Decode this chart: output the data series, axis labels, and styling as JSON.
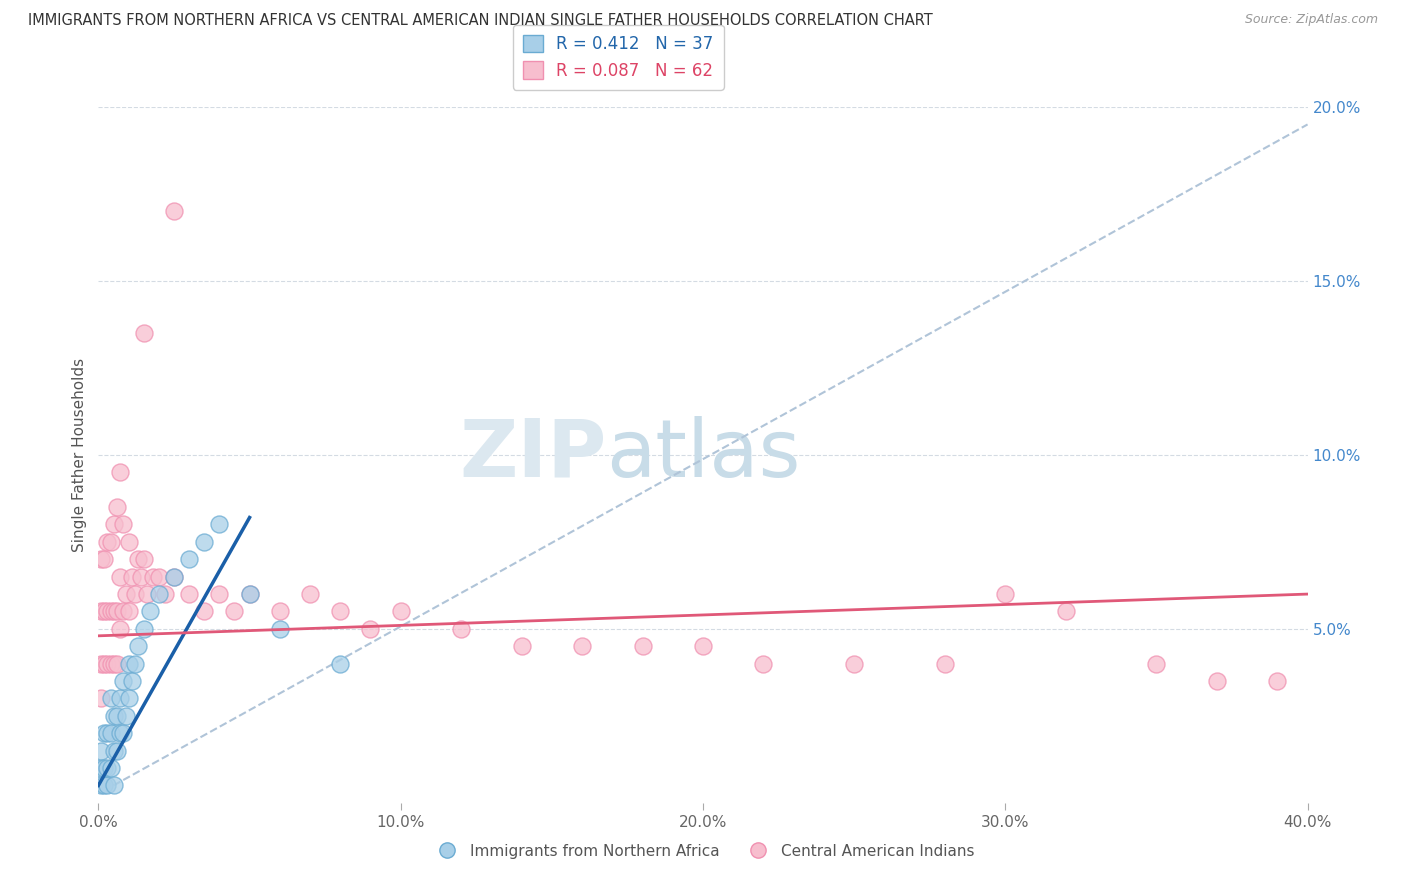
{
  "title": "IMMIGRANTS FROM NORTHERN AFRICA VS CENTRAL AMERICAN INDIAN SINGLE FATHER HOUSEHOLDS CORRELATION CHART",
  "source": "Source: ZipAtlas.com",
  "ylabel": "Single Father Households",
  "xlim": [
    0.0,
    0.4
  ],
  "ylim": [
    0.0,
    0.2
  ],
  "xticks": [
    0.0,
    0.1,
    0.2,
    0.3,
    0.4
  ],
  "xtick_labels": [
    "0.0%",
    "10.0%",
    "20.0%",
    "30.0%",
    "40.0%"
  ],
  "yticks_right": [
    0.05,
    0.1,
    0.15,
    0.2
  ],
  "ytick_labels_right": [
    "5.0%",
    "10.0%",
    "15.0%",
    "20.0%"
  ],
  "blue_label": "Immigrants from Northern Africa",
  "pink_label": "Central American Indians",
  "blue_R": 0.412,
  "blue_N": 37,
  "pink_R": 0.087,
  "pink_N": 62,
  "blue_color": "#a8cfe8",
  "pink_color": "#f7bece",
  "blue_edge": "#6aabd2",
  "pink_edge": "#f090b0",
  "regression_blue_color": "#1a5fa8",
  "regression_pink_color": "#e05878",
  "dashed_line_color": "#b0c4d8",
  "background_color": "#ffffff",
  "grid_color": "#d0d8e0",
  "blue_x": [
    0.001,
    0.001,
    0.001,
    0.002,
    0.002,
    0.002,
    0.003,
    0.003,
    0.003,
    0.004,
    0.004,
    0.004,
    0.005,
    0.005,
    0.005,
    0.006,
    0.006,
    0.007,
    0.007,
    0.008,
    0.008,
    0.009,
    0.01,
    0.01,
    0.011,
    0.012,
    0.013,
    0.015,
    0.017,
    0.02,
    0.025,
    0.03,
    0.035,
    0.04,
    0.05,
    0.06,
    0.08
  ],
  "blue_y": [
    0.005,
    0.01,
    0.015,
    0.005,
    0.01,
    0.02,
    0.005,
    0.01,
    0.02,
    0.01,
    0.02,
    0.03,
    0.005,
    0.015,
    0.025,
    0.015,
    0.025,
    0.02,
    0.03,
    0.02,
    0.035,
    0.025,
    0.03,
    0.04,
    0.035,
    0.04,
    0.045,
    0.05,
    0.055,
    0.06,
    0.065,
    0.07,
    0.075,
    0.08,
    0.06,
    0.05,
    0.04
  ],
  "pink_x": [
    0.001,
    0.001,
    0.001,
    0.001,
    0.002,
    0.002,
    0.002,
    0.003,
    0.003,
    0.003,
    0.004,
    0.004,
    0.004,
    0.005,
    0.005,
    0.005,
    0.006,
    0.006,
    0.006,
    0.007,
    0.007,
    0.007,
    0.008,
    0.008,
    0.009,
    0.01,
    0.01,
    0.011,
    0.012,
    0.013,
    0.014,
    0.015,
    0.016,
    0.018,
    0.02,
    0.022,
    0.025,
    0.03,
    0.035,
    0.04,
    0.045,
    0.05,
    0.06,
    0.07,
    0.08,
    0.09,
    0.1,
    0.12,
    0.14,
    0.16,
    0.18,
    0.2,
    0.22,
    0.25,
    0.28,
    0.3,
    0.32,
    0.35,
    0.37,
    0.39,
    0.015,
    0.025
  ],
  "pink_y": [
    0.03,
    0.04,
    0.055,
    0.07,
    0.04,
    0.055,
    0.07,
    0.04,
    0.055,
    0.075,
    0.04,
    0.055,
    0.075,
    0.04,
    0.055,
    0.08,
    0.04,
    0.055,
    0.085,
    0.05,
    0.065,
    0.095,
    0.055,
    0.08,
    0.06,
    0.055,
    0.075,
    0.065,
    0.06,
    0.07,
    0.065,
    0.07,
    0.06,
    0.065,
    0.065,
    0.06,
    0.065,
    0.06,
    0.055,
    0.06,
    0.055,
    0.06,
    0.055,
    0.06,
    0.055,
    0.05,
    0.055,
    0.05,
    0.045,
    0.045,
    0.045,
    0.045,
    0.04,
    0.04,
    0.04,
    0.06,
    0.055,
    0.04,
    0.035,
    0.035,
    0.135,
    0.17
  ]
}
